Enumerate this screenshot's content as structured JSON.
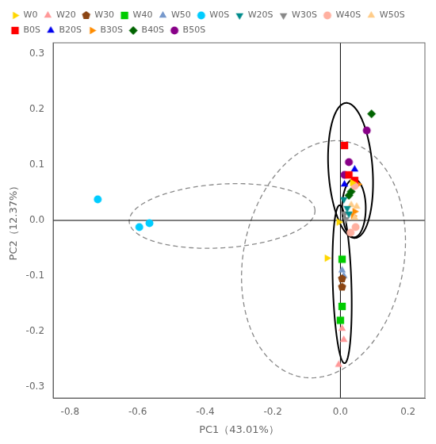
{
  "chart_data": {
    "type": "scatter",
    "xlabel": "PC1（43.01%）",
    "ylabel": "PC2（12.37%）",
    "xlim": [
      -0.85,
      0.25
    ],
    "ylim": [
      -0.32,
      0.32
    ],
    "xticks": [
      -0.8,
      -0.6,
      -0.4,
      -0.2,
      {
        "value": 0.0,
        "label": "0.0"
      },
      0.2
    ],
    "yticks": [
      -0.3,
      -0.2,
      -0.1,
      {
        "value": 0.0,
        "label": "0.0"
      },
      0.1,
      0.2,
      0.3
    ],
    "grid": false,
    "legend": "upper left",
    "series": [
      {
        "name": "W0",
        "color": "#FFD700",
        "marker": "triangle-right",
        "x": [
          0.035,
          -0.005,
          -0.04
        ],
        "values": [
          0.068,
          -0.003,
          -0.068
        ]
      },
      {
        "name": "W20",
        "color": "#FF9999",
        "marker": "triangle-up",
        "x": [
          -0.005,
          0.005,
          0.01
        ],
        "values": [
          -0.26,
          -0.195,
          -0.215
        ]
      },
      {
        "name": "W30",
        "color": "#8B4513",
        "marker": "pentagon",
        "x": [
          0.005,
          0.005
        ],
        "values": [
          -0.12,
          -0.105
        ]
      },
      {
        "name": "W40",
        "color": "#00CC00",
        "marker": "square",
        "x": [
          0.005,
          0.005,
          0.0
        ],
        "values": [
          -0.07,
          -0.155,
          -0.18
        ]
      },
      {
        "name": "W50",
        "color": "#7799CC",
        "marker": "triangle-up",
        "x": [
          0.005,
          0.01
        ],
        "values": [
          -0.09,
          -0.1
        ]
      },
      {
        "name": "W0S",
        "color": "#00CCFF",
        "marker": "circle",
        "x": [
          -0.718,
          -0.595,
          -0.565
        ],
        "values": [
          0.038,
          -0.012,
          -0.005
        ]
      },
      {
        "name": "W20S",
        "color": "#008B8B",
        "marker": "triangle-down",
        "x": [
          0.01,
          0.02,
          0.025
        ],
        "values": [
          0.038,
          0.022,
          0.012
        ]
      },
      {
        "name": "W30S",
        "color": "#888888",
        "marker": "triangle-down",
        "x": [
          0.012,
          0.016
        ],
        "values": [
          0.012,
          0.002
        ]
      },
      {
        "name": "W40S",
        "color": "#FFB0A0",
        "marker": "circle",
        "x": [
          0.03,
          0.045,
          0.042
        ],
        "values": [
          -0.022,
          -0.012,
          0.062
        ]
      },
      {
        "name": "W50S",
        "color": "#FFCC88",
        "marker": "triangle-up",
        "x": [
          0.032,
          0.048,
          0.042
        ],
        "values": [
          0.028,
          0.025,
          0.005
        ]
      },
      {
        "name": "B0S",
        "color": "#FF0000",
        "marker": "square",
        "x": [
          0.012,
          0.025,
          0.042
        ],
        "values": [
          0.135,
          0.082,
          0.072
        ]
      },
      {
        "name": "B20S",
        "color": "#0000EE",
        "marker": "triangle-up",
        "x": [
          0.042,
          0.012
        ],
        "values": [
          0.092,
          0.065
        ]
      },
      {
        "name": "B30S",
        "color": "#FF8C00",
        "marker": "triangle-right",
        "x": [
          0.052,
          0.042,
          0.038
        ],
        "values": [
          0.065,
          0.016,
          0.008
        ]
      },
      {
        "name": "B40S",
        "color": "#006400",
        "marker": "diamond",
        "x": [
          0.092,
          0.032,
          0.025
        ],
        "values": [
          0.192,
          0.052,
          0.045
        ]
      },
      {
        "name": "B50S",
        "color": "#880088",
        "marker": "circle",
        "x": [
          0.078,
          0.025,
          0.012
        ],
        "values": [
          0.162,
          0.105,
          0.082
        ]
      }
    ],
    "ellipses": [
      {
        "cx": -0.35,
        "cy": 0.008,
        "width": 0.55,
        "height": 0.115,
        "angle": 2,
        "color": "#888888",
        "line_style": "dashed"
      },
      {
        "cx": -0.05,
        "cy": -0.07,
        "width": 0.5,
        "height": 0.41,
        "angle": 25,
        "color": "#888888",
        "line_style": "dashed"
      },
      {
        "cx": 0.03,
        "cy": 0.09,
        "width": 0.13,
        "height": 0.245,
        "angle": 8,
        "color": "#000000",
        "line_style": "solid"
      },
      {
        "cx": 0.005,
        "cy": -0.115,
        "width": 0.055,
        "height": 0.285,
        "angle": 3,
        "color": "#000000",
        "line_style": "solid"
      },
      {
        "cx": 0.04,
        "cy": 0.022,
        "width": 0.07,
        "height": 0.105,
        "angle": 0,
        "color": "#000000",
        "line_style": "solid"
      }
    ],
    "hlines": [
      0
    ],
    "vlines": [
      0
    ]
  }
}
